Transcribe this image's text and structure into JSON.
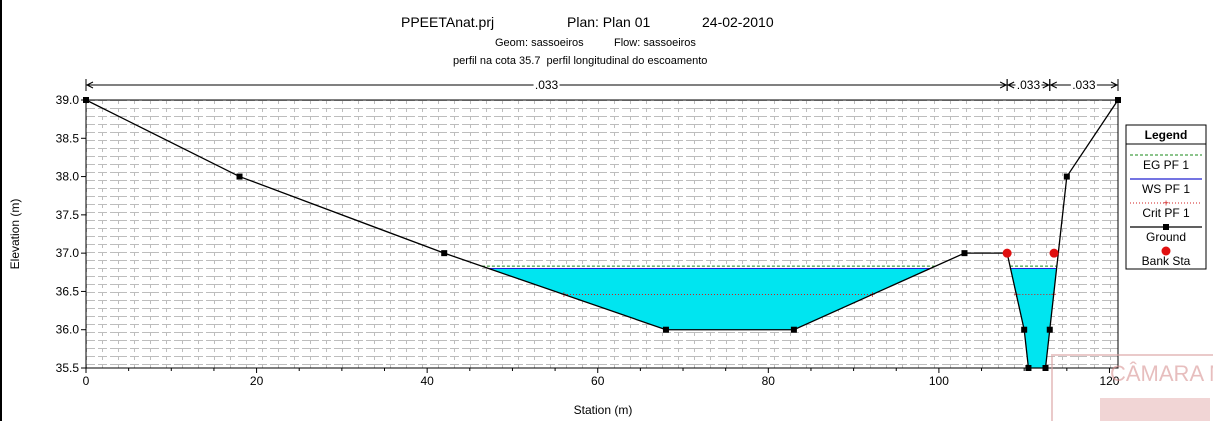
{
  "header": {
    "project": "PPEETAnat.prj",
    "plan": "Plan: Plan 01",
    "date": "24-02-2010",
    "geom": "Geom: sassoeiros",
    "flow": "Flow: sassoeiros",
    "description": "perfil na cota 35.7  perfil longitudinal do escoamento"
  },
  "stamp": {
    "text": "CÂMARA M"
  },
  "legend": {
    "title": "Legend",
    "items": [
      {
        "label": "EG PF 1",
        "color": "#1a8a1a",
        "style": "dashed"
      },
      {
        "label": "WS PF 1",
        "color": "#2020d0",
        "style": "solid"
      },
      {
        "label": "Crit PF 1",
        "color": "#d02020",
        "style": "dotted-plus"
      },
      {
        "label": "Ground",
        "color": "#000000",
        "style": "solid-square"
      },
      {
        "label": "Bank Sta",
        "color": "#e01010",
        "style": "dot"
      }
    ]
  },
  "chart_data": {
    "type": "line",
    "xlabel": "Station (m)",
    "ylabel": "Elevation (m)",
    "xlim": [
      0,
      121
    ],
    "ylim": [
      35.5,
      39.0
    ],
    "xticks": [
      0,
      20,
      40,
      60,
      80,
      100,
      120
    ],
    "yticks": [
      35.5,
      36.0,
      36.5,
      37.0,
      37.5,
      38.0,
      38.5,
      39.0
    ],
    "grid": true,
    "legend_position": "right",
    "manning": [
      {
        "label": ".033",
        "x0": 0,
        "x1": 108
      },
      {
        "label": ".033",
        "x0": 108,
        "x1": 113
      },
      {
        "label": ".033",
        "x0": 113,
        "x1": 121
      }
    ],
    "ground": {
      "x": [
        0,
        18,
        42,
        68,
        83,
        103,
        108,
        110,
        110.5,
        112.5,
        113,
        115,
        121
      ],
      "y": [
        39.0,
        38.0,
        37.0,
        36.0,
        36.0,
        37.0,
        37.0,
        36.0,
        35.5,
        35.5,
        36.0,
        38.0,
        39.0
      ]
    },
    "bank_stations": [
      {
        "x": 108,
        "y": 37.0
      },
      {
        "x": 113.5,
        "y": 37.0
      }
    ],
    "water_surface": {
      "name": "WS PF 1",
      "elevation": 36.8
    },
    "energy_grade": {
      "name": "EG PF 1",
      "elevation": 36.83
    },
    "critical": {
      "name": "Crit PF 1",
      "elevation": 36.46
    },
    "water_color": "#00e5f0"
  }
}
